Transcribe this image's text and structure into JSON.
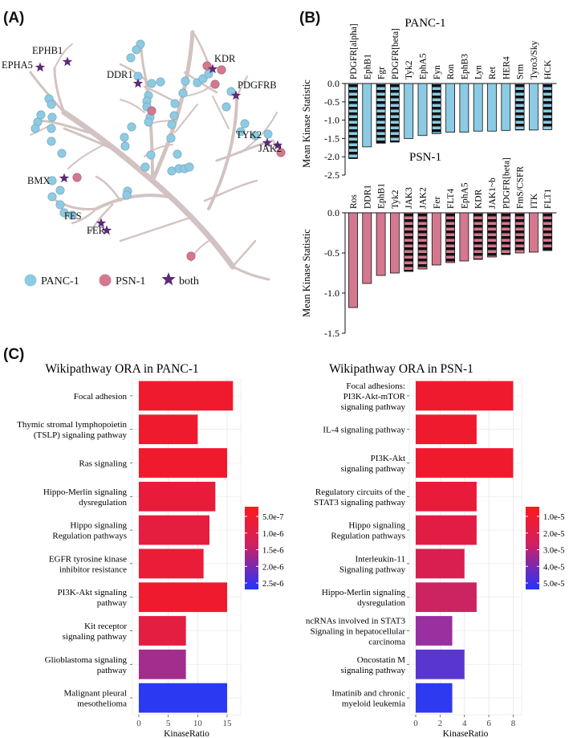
{
  "panels": {
    "a": "(A)",
    "b": "(B)",
    "c": "(C)"
  },
  "colors": {
    "panc": "#8ccbe3",
    "psn": "#d4788f",
    "both": "#5e2a77",
    "branch": "#d2c3c2"
  },
  "tree": {
    "legend": [
      {
        "key": "panc",
        "label": "PANC-1",
        "shape": "circle"
      },
      {
        "key": "psn",
        "label": "PSN-1",
        "shape": "circle"
      },
      {
        "key": "both",
        "label": "both",
        "shape": "star"
      }
    ],
    "labels": [
      "EPHB1",
      "EPHA5",
      "DDR1",
      "KDR",
      "PDGFRB",
      "TYK2",
      "JAK2",
      "BMX",
      "FES",
      "FER"
    ]
  },
  "chart_data": [
    {
      "type": "bar",
      "title": "PANC-1",
      "ylabel": "Mean Kinase Statistic",
      "ylim": [
        -2.5,
        0
      ],
      "yticks": [
        "0.0",
        "-0.5",
        "-1.0",
        "-1.5",
        "-2.0",
        "-2.5"
      ],
      "categories": [
        "PDGFR[alpha]",
        "EphB1",
        "Fgr",
        "PDGFR[beta]",
        "Tyk2",
        "EphA5",
        "Fyn",
        "Ron",
        "EphB3",
        "Lyn",
        "Ret",
        "HER4",
        "Srm",
        "Tyro3/Sky",
        "HCK"
      ],
      "values": [
        -2.05,
        -1.73,
        -1.63,
        -1.6,
        -1.5,
        -1.42,
        -1.37,
        -1.33,
        -1.33,
        -1.3,
        -1.3,
        -1.28,
        -1.27,
        -1.27,
        -1.26
      ],
      "hatched": [
        true,
        false,
        true,
        true,
        false,
        false,
        true,
        false,
        false,
        false,
        false,
        false,
        true,
        false,
        true
      ]
    },
    {
      "type": "bar",
      "title": "PSN-1",
      "ylabel": "Mean Kinase Statistic",
      "ylim": [
        -1.5,
        0
      ],
      "yticks": [
        "0.0",
        "-0.5",
        "-1.0",
        "-1.5"
      ],
      "categories": [
        "Ros",
        "DDR1",
        "EphB1",
        "Tyk2",
        "JAK3",
        "JAK2",
        "Fer",
        "FLT4",
        "EphA5",
        "KDR",
        "JAK1~b",
        "PDGFR[beta]",
        "FmS/CSFR",
        "ITK",
        "FLT1"
      ],
      "values": [
        -1.18,
        -0.88,
        -0.78,
        -0.75,
        -0.73,
        -0.7,
        -0.65,
        -0.62,
        -0.6,
        -0.58,
        -0.55,
        -0.52,
        -0.5,
        -0.49,
        -0.47
      ],
      "hatched": [
        false,
        false,
        false,
        false,
        true,
        true,
        false,
        true,
        false,
        true,
        true,
        true,
        true,
        false,
        true
      ]
    },
    {
      "type": "bar",
      "orientation": "horizontal",
      "title": "Wikipathway ORA in PANC-1",
      "xlabel": "KinaseRatio",
      "xlim": [
        0,
        16.5
      ],
      "xticks": [
        "0",
        "5",
        "10",
        "15"
      ],
      "categories": [
        "Focal adhesion",
        "Thymic stromal lymphopoietin (TSLP) signaling pathway",
        "Ras signaling",
        "Hippo-Merlin signaling dysregulation",
        "Hippo signaling Regulation pathways",
        "EGFR tyrosine kinase inhibitor resistance",
        "PI3K-Akt signaling pathway",
        "Kit receptor signaling pathway",
        "Glioblastoma signaling pathway",
        "Malignant pleural mesothelioma"
      ],
      "category_lines": [
        [
          "Focal adhesion"
        ],
        [
          "Thymic stromal lymphopoietin",
          "(TSLP) signaling pathway"
        ],
        [
          "Ras signaling"
        ],
        [
          "Hippo-Merlin signaling",
          "dysregulation"
        ],
        [
          "Hippo signaling",
          "Regulation pathways"
        ],
        [
          "EGFR tyrosine kinase",
          "inhibitor resistance"
        ],
        [
          "PI3K-Akt signaling",
          "pathway"
        ],
        [
          "Kit receptor",
          "signaling pathway"
        ],
        [
          "Glioblastoma signaling",
          "pathway"
        ],
        [
          "Malignant pleural",
          "mesothelioma"
        ]
      ],
      "values": [
        16,
        10,
        15,
        13,
        12,
        11,
        15,
        8,
        8,
        15
      ],
      "colors": [
        "#f01a2f",
        "#f01a2f",
        "#f01a2f",
        "#e81c3a",
        "#e51d3e",
        "#ea1c37",
        "#f01a2f",
        "#e31e41",
        "#a22d8c",
        "#2a3af0"
      ],
      "colorbar": {
        "labels": [
          "5.0e-7",
          "1.0e-6",
          "1.5e-6",
          "2.0e-6",
          "2.5e-6"
        ]
      }
    },
    {
      "type": "bar",
      "orientation": "horizontal",
      "title": "Wikipathway ORA in PSN-1",
      "xlabel": "KinaseRatio",
      "xlim": [
        0,
        8.3
      ],
      "xticks": [
        "0",
        "2",
        "4",
        "6",
        "8"
      ],
      "categories": [
        "Focal adhesions: PI3K-Akt-mTOR signaling pathway",
        "IL-4 signaling pathway",
        "PI3K-Akt signaling pathway",
        "Regulatory circuits of the STAT3 signaling pathway",
        "Hippo signaling Regulation pathways",
        "Interleukin-11 Signaling pathway",
        "Hippo-Merlin signaling dysregulation",
        "ncRNAs involved in STAT3 Signaling in hepatocellular carcinoma",
        "Oncostatin M signaling pathway",
        "Imatinib and chronic myeloid leukemia"
      ],
      "category_lines": [
        [
          "Focal adhesions:",
          "PI3K-Akt-mTOR",
          "signaling pathway"
        ],
        [
          "IL-4 signaling pathway"
        ],
        [
          "PI3K-Akt",
          "signaling pathway"
        ],
        [
          "Regulatory circuits of the",
          "STAT3 signaling pathway"
        ],
        [
          "Hippo signaling",
          "Regulation pathways"
        ],
        [
          "Interleukin-11",
          "Signaling pathway"
        ],
        [
          "Hippo-Merlin signaling",
          "dysregulation"
        ],
        [
          "ncRNAs involved in STAT3",
          "Signaling in hepatocellular",
          "carcinoma"
        ],
        [
          "Oncostatin M",
          "signaling pathway"
        ],
        [
          "Imatinib and chronic",
          "myeloid leukemia"
        ]
      ],
      "values": [
        8,
        5,
        8,
        5,
        5,
        4,
        5,
        3,
        4,
        3
      ],
      "colors": [
        "#f01a2f",
        "#f01a2f",
        "#f01a2f",
        "#e81b3b",
        "#e11d44",
        "#d81f50",
        "#cc2460",
        "#9a2fa0",
        "#5a36d0",
        "#2d3af0"
      ],
      "colorbar": {
        "labels": [
          "1.0e-5",
          "2.0e-5",
          "3.0e-5",
          "4.0e-5",
          "5.0e-5"
        ]
      }
    }
  ]
}
